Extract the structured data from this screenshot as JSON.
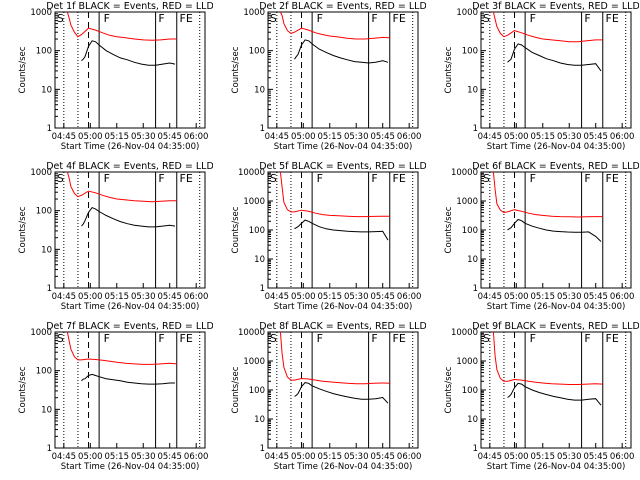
{
  "chart_data": [
    {
      "type": "line",
      "title": "Det 1f BLACK = Events, RED = LLD",
      "xlabel": "Start Time (26-Nov-04 04:35:00)",
      "ylabel": "Counts/sec",
      "yscale": "log",
      "ylim": [
        1,
        1000
      ],
      "yticks": [
        "1",
        "10",
        "100",
        "1000"
      ],
      "xticks": [
        "04:45",
        "05:00",
        "05:15",
        "05:30",
        "05:45",
        "06:00"
      ],
      "region_labels": [
        "S",
        "F",
        "F",
        "FE"
      ],
      "series": [
        {
          "color": "#ff0000",
          "x": [
            2,
            3,
            4,
            6,
            8,
            10,
            14,
            18,
            22,
            26,
            30,
            35,
            40,
            45,
            50,
            55,
            60,
            64
          ],
          "y": [
            1000,
            700,
            460,
            300,
            230,
            260,
            380,
            340,
            290,
            250,
            230,
            215,
            200,
            190,
            185,
            190,
            200,
            200
          ]
        },
        {
          "color": "#000000",
          "x": [
            10,
            11,
            12,
            14,
            16,
            18,
            20,
            24,
            28,
            32,
            36,
            40,
            44,
            48,
            52,
            56,
            60,
            63
          ],
          "y": [
            55,
            60,
            70,
            130,
            180,
            170,
            140,
            100,
            80,
            65,
            58,
            50,
            45,
            42,
            42,
            45,
            48,
            45
          ]
        }
      ]
    },
    {
      "type": "line",
      "title": "Det 2f BLACK = Events, RED = LLD",
      "xlabel": "Start Time (26-Nov-04 04:35:00)",
      "ylabel": "Counts/sec",
      "yscale": "log",
      "ylim": [
        1,
        1000
      ],
      "yticks": [
        "1",
        "10",
        "100",
        "1000"
      ],
      "xticks": [
        "04:45",
        "05:00",
        "05:15",
        "05:30",
        "05:45",
        "06:00"
      ],
      "region_labels": [
        "S",
        "F",
        "F",
        "FE"
      ],
      "series": [
        {
          "color": "#ff0000",
          "x": [
            2,
            3,
            4,
            6,
            8,
            10,
            14,
            18,
            22,
            26,
            30,
            35,
            40,
            45,
            50,
            55,
            60,
            64
          ],
          "y": [
            1000,
            800,
            500,
            330,
            280,
            300,
            380,
            340,
            290,
            260,
            240,
            225,
            210,
            200,
            200,
            210,
            220,
            215
          ]
        },
        {
          "color": "#000000",
          "x": [
            10,
            11,
            12,
            14,
            16,
            18,
            20,
            24,
            28,
            32,
            36,
            40,
            44,
            48,
            52,
            56,
            60,
            63
          ],
          "y": [
            60,
            70,
            80,
            140,
            190,
            180,
            150,
            110,
            90,
            75,
            65,
            58,
            52,
            50,
            48,
            50,
            55,
            50
          ]
        }
      ]
    },
    {
      "type": "line",
      "title": "Det 3f BLACK = Events, RED = LLD",
      "xlabel": "Start Time (26-Nov-04 04:35:00)",
      "ylabel": "Counts/sec",
      "yscale": "log",
      "ylim": [
        1,
        1000
      ],
      "yticks": [
        "1",
        "10",
        "100",
        "1000"
      ],
      "xticks": [
        "04:45",
        "05:00",
        "05:15",
        "05:30",
        "05:45",
        "06:00"
      ],
      "region_labels": [
        "S",
        "F",
        "F",
        "FE"
      ],
      "series": [
        {
          "color": "#ff0000",
          "x": [
            2,
            3,
            4,
            6,
            8,
            10,
            14,
            18,
            22,
            26,
            30,
            35,
            40,
            45,
            50,
            55,
            60,
            64
          ],
          "y": [
            1000,
            650,
            420,
            280,
            230,
            250,
            330,
            290,
            250,
            220,
            200,
            190,
            180,
            170,
            170,
            180,
            190,
            190
          ]
        },
        {
          "color": "#000000",
          "x": [
            10,
            11,
            12,
            14,
            16,
            18,
            20,
            24,
            28,
            32,
            36,
            40,
            44,
            48,
            52,
            56,
            60,
            63
          ],
          "y": [
            50,
            55,
            60,
            110,
            150,
            140,
            120,
            90,
            75,
            62,
            55,
            48,
            44,
            42,
            42,
            44,
            46,
            30
          ]
        }
      ]
    },
    {
      "type": "line",
      "title": "Det 4f BLACK = Events, RED = LLD",
      "xlabel": "Start Time (26-Nov-04 04:35:00)",
      "ylabel": "Counts/sec",
      "yscale": "log",
      "ylim": [
        1,
        1000
      ],
      "yticks": [
        "1",
        "10",
        "100",
        "1000"
      ],
      "xticks": [
        "04:45",
        "05:00",
        "05:15",
        "05:30",
        "05:45",
        "06:00"
      ],
      "region_labels": [
        "S",
        "F",
        "F",
        "FE"
      ],
      "series": [
        {
          "color": "#ff0000",
          "x": [
            2,
            3,
            4,
            6,
            8,
            10,
            14,
            18,
            22,
            26,
            30,
            35,
            40,
            45,
            50,
            55,
            60,
            64
          ],
          "y": [
            1000,
            700,
            420,
            280,
            230,
            250,
            320,
            290,
            250,
            220,
            200,
            190,
            180,
            175,
            170,
            175,
            180,
            180
          ]
        },
        {
          "color": "#000000",
          "x": [
            10,
            11,
            12,
            14,
            16,
            18,
            20,
            24,
            28,
            32,
            36,
            40,
            44,
            48,
            52,
            56,
            60,
            63
          ],
          "y": [
            40,
            45,
            55,
            90,
            120,
            110,
            95,
            75,
            62,
            52,
            46,
            42,
            40,
            38,
            38,
            40,
            42,
            40
          ]
        }
      ]
    },
    {
      "type": "line",
      "title": "Det 5f BLACK = Events, RED = LLD",
      "xlabel": "Start Time (26-Nov-04 04:35:00)",
      "ylabel": "Counts/sec",
      "yscale": "log",
      "ylim": [
        1,
        10000
      ],
      "yticks": [
        "1",
        "10",
        "100",
        "1000",
        "10000"
      ],
      "xticks": [
        "04:45",
        "05:00",
        "05:15",
        "05:30",
        "05:45",
        "06:00"
      ],
      "region_labels": [
        "S",
        "F",
        "F",
        "FE"
      ],
      "series": [
        {
          "color": "#ff0000",
          "x": [
            2,
            3,
            4,
            6,
            8,
            10,
            14,
            18,
            22,
            26,
            30,
            35,
            40,
            45,
            50,
            55,
            60,
            64
          ],
          "y": [
            10000,
            3000,
            900,
            500,
            420,
            420,
            480,
            440,
            380,
            340,
            320,
            310,
            300,
            290,
            290,
            295,
            300,
            300
          ]
        },
        {
          "color": "#000000",
          "x": [
            10,
            11,
            12,
            14,
            16,
            18,
            20,
            24,
            28,
            32,
            36,
            40,
            44,
            48,
            52,
            56,
            60,
            63
          ],
          "y": [
            110,
            120,
            130,
            170,
            220,
            200,
            170,
            130,
            110,
            100,
            95,
            90,
            88,
            86,
            86,
            88,
            90,
            45
          ]
        }
      ]
    },
    {
      "type": "line",
      "title": "Det 6f BLACK = Events, RED = LLD",
      "xlabel": "Start Time (26-Nov-04 04:35:00)",
      "ylabel": "Counts/sec",
      "yscale": "log",
      "ylim": [
        1,
        10000
      ],
      "yticks": [
        "1",
        "10",
        "100",
        "1000",
        "10000"
      ],
      "xticks": [
        "04:45",
        "05:00",
        "05:15",
        "05:30",
        "05:45",
        "06:00"
      ],
      "region_labels": [
        "S",
        "F",
        "F",
        "FE"
      ],
      "series": [
        {
          "color": "#ff0000",
          "x": [
            2,
            3,
            4,
            6,
            8,
            10,
            14,
            18,
            22,
            26,
            30,
            35,
            40,
            45,
            50,
            55,
            60,
            64
          ],
          "y": [
            10000,
            2500,
            800,
            480,
            400,
            420,
            500,
            440,
            380,
            340,
            320,
            300,
            290,
            285,
            280,
            285,
            290,
            290
          ]
        },
        {
          "color": "#000000",
          "x": [
            10,
            11,
            12,
            14,
            16,
            18,
            20,
            24,
            28,
            32,
            36,
            40,
            44,
            48,
            52,
            56,
            60,
            63
          ],
          "y": [
            100,
            110,
            120,
            170,
            230,
            210,
            170,
            135,
            115,
            100,
            92,
            88,
            85,
            84,
            84,
            86,
            60,
            40
          ]
        }
      ]
    },
    {
      "type": "line",
      "title": "Det 7f BLACK = Events, RED = LLD",
      "xlabel": "Start Time (26-Nov-04 04:35:00)",
      "ylabel": "Counts/sec",
      "yscale": "log",
      "ylim": [
        1,
        1000
      ],
      "yticks": [
        "1",
        "10",
        "100",
        "1000"
      ],
      "xticks": [
        "04:45",
        "05:00",
        "05:15",
        "05:30",
        "05:45",
        "06:00"
      ],
      "region_labels": [
        "S",
        "F",
        "F",
        "FE"
      ],
      "series": [
        {
          "color": "#ff0000",
          "x": [
            2,
            3,
            4,
            6,
            8,
            10,
            14,
            18,
            22,
            26,
            30,
            35,
            40,
            45,
            50,
            55,
            60,
            64
          ],
          "y": [
            1000,
            600,
            360,
            230,
            190,
            190,
            200,
            195,
            185,
            175,
            165,
            155,
            150,
            145,
            145,
            150,
            155,
            150
          ]
        },
        {
          "color": "#000000",
          "x": [
            10,
            11,
            12,
            14,
            16,
            18,
            20,
            24,
            28,
            32,
            36,
            40,
            44,
            48,
            52,
            56,
            60,
            63
          ],
          "y": [
            55,
            60,
            62,
            75,
            80,
            75,
            70,
            62,
            58,
            55,
            50,
            48,
            46,
            45,
            45,
            46,
            48,
            48
          ]
        }
      ]
    },
    {
      "type": "line",
      "title": "Det 8f BLACK = Events, RED = LLD",
      "xlabel": "Start Time (26-Nov-04 04:35:00)",
      "ylabel": "Counts/sec",
      "yscale": "log",
      "ylim": [
        1,
        10000
      ],
      "yticks": [
        "1",
        "10",
        "100",
        "1000",
        "10000"
      ],
      "xticks": [
        "04:45",
        "05:00",
        "05:15",
        "05:30",
        "05:45",
        "06:00"
      ],
      "region_labels": [
        "S",
        "F",
        "F",
        "FE"
      ],
      "series": [
        {
          "color": "#ff0000",
          "x": [
            2,
            3,
            4,
            6,
            8,
            10,
            14,
            18,
            22,
            26,
            30,
            35,
            40,
            45,
            50,
            55,
            60,
            64
          ],
          "y": [
            10000,
            1800,
            600,
            280,
            220,
            220,
            250,
            240,
            220,
            200,
            190,
            180,
            170,
            165,
            165,
            170,
            175,
            170
          ]
        },
        {
          "color": "#000000",
          "x": [
            10,
            11,
            12,
            14,
            16,
            18,
            20,
            24,
            28,
            32,
            36,
            40,
            44,
            48,
            52,
            56,
            60,
            63
          ],
          "y": [
            60,
            65,
            75,
            130,
            180,
            170,
            140,
            110,
            90,
            75,
            65,
            58,
            52,
            48,
            48,
            50,
            55,
            35
          ]
        }
      ]
    },
    {
      "type": "line",
      "title": "Det 9f BLACK = Events, RED = LLD",
      "xlabel": "Start Time (26-Nov-04 04:35:00)",
      "ylabel": "Counts/sec",
      "yscale": "log",
      "ylim": [
        1,
        10000
      ],
      "yticks": [
        "1",
        "10",
        "100",
        "1000",
        "10000"
      ],
      "xticks": [
        "04:45",
        "05:00",
        "05:15",
        "05:30",
        "05:45",
        "06:00"
      ],
      "region_labels": [
        "S",
        "F",
        "F",
        "FE"
      ],
      "series": [
        {
          "color": "#ff0000",
          "x": [
            2,
            3,
            4,
            6,
            8,
            10,
            14,
            18,
            22,
            26,
            30,
            35,
            40,
            45,
            50,
            55,
            60,
            64
          ],
          "y": [
            10000,
            1500,
            500,
            250,
            200,
            200,
            230,
            220,
            200,
            185,
            175,
            165,
            160,
            155,
            155,
            160,
            165,
            160
          ]
        },
        {
          "color": "#000000",
          "x": [
            10,
            11,
            12,
            14,
            16,
            18,
            20,
            24,
            28,
            32,
            36,
            40,
            44,
            48,
            52,
            56,
            60,
            63
          ],
          "y": [
            55,
            60,
            70,
            120,
            170,
            160,
            130,
            100,
            82,
            70,
            60,
            54,
            48,
            45,
            45,
            48,
            50,
            30
          ]
        }
      ]
    }
  ]
}
